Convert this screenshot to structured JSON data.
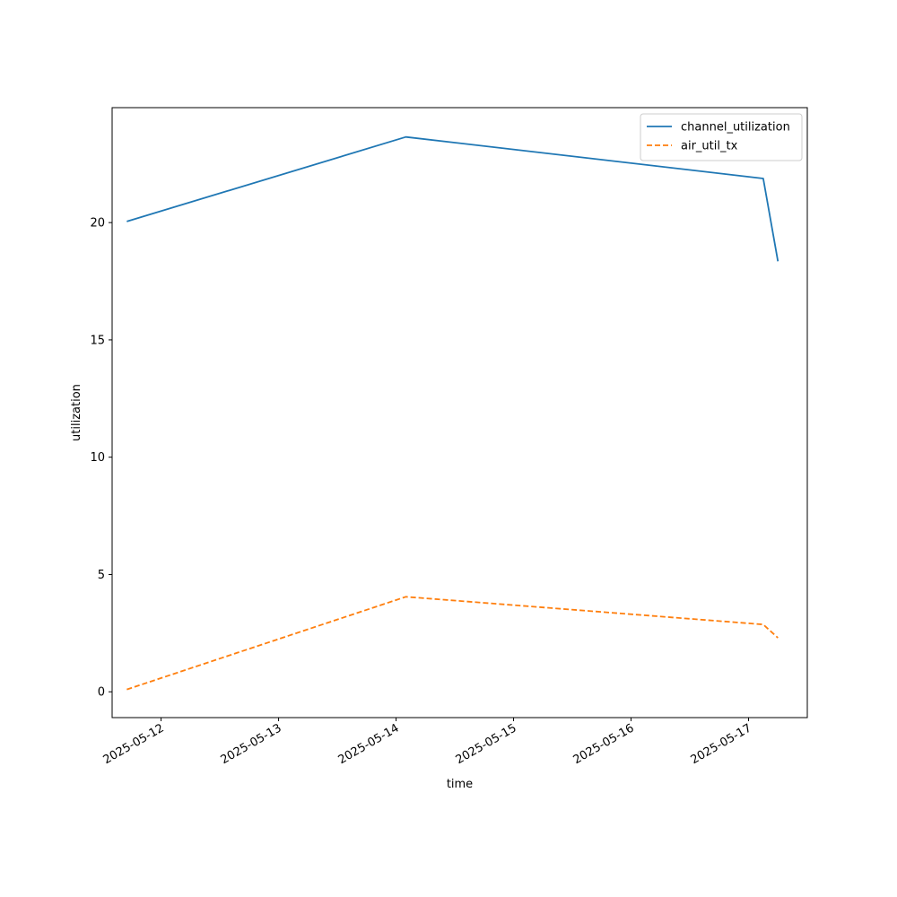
{
  "chart_data": {
    "type": "line",
    "title": "",
    "xlabel": "time",
    "ylabel": "utilization",
    "x_axis_type": "date",
    "x": [
      "2025-05-11 17:00",
      "2025-05-14 02:00",
      "2025-05-17 03:00",
      "2025-05-17 06:00"
    ],
    "xticks": [
      "2025-05-12",
      "2025-05-13",
      "2025-05-14",
      "2025-05-15",
      "2025-05-16",
      "2025-05-17"
    ],
    "xlim": [
      "2025-05-11 14:00",
      "2025-05-17 12:00"
    ],
    "yticks": [
      0,
      5,
      10,
      15,
      20
    ],
    "ylim": [
      -1.1,
      24.9
    ],
    "grid": false,
    "legend_position": "top-right",
    "series": [
      {
        "name": "channel_utilization",
        "values": [
          20.05,
          23.65,
          21.88,
          18.35
        ],
        "color": "#1f77b4",
        "style": "solid"
      },
      {
        "name": "air_util_tx",
        "values": [
          0.1,
          4.05,
          2.87,
          2.3
        ],
        "color": "#ff7f0e",
        "style": "dashed"
      }
    ]
  }
}
